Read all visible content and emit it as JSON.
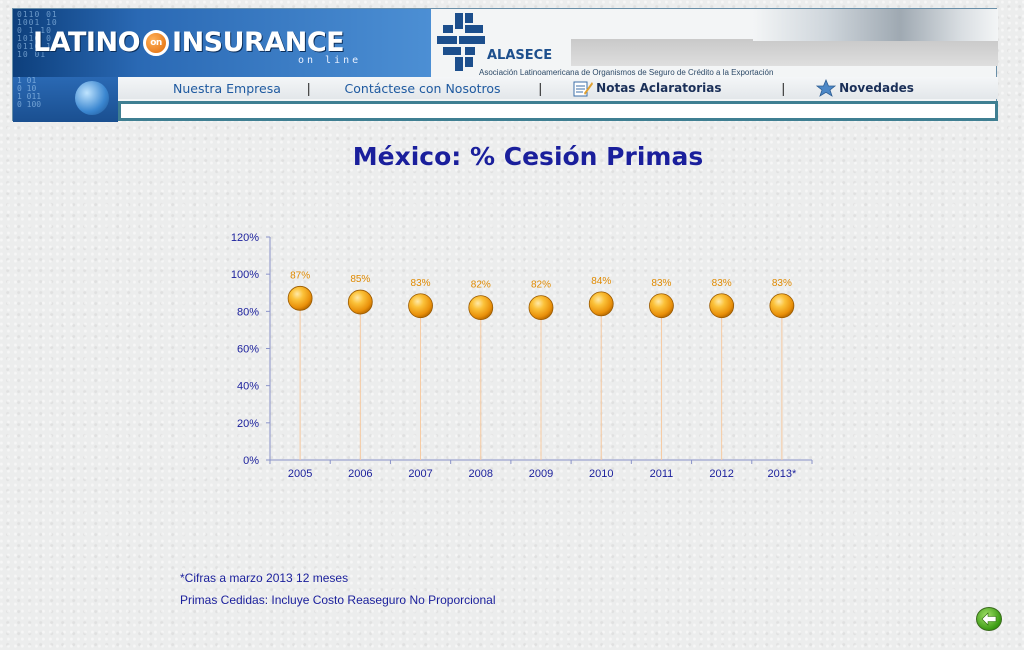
{
  "header": {
    "logo_left": "LATINO",
    "logo_on": "on",
    "logo_right": "INSURANCE",
    "logo_subtitle": "on line",
    "org_name": "ALASECE",
    "org_description": "Asociación Latinoamericana de Organismos de Seguro de Crédito a la Exportación"
  },
  "nav": {
    "items": [
      {
        "label": "Nuestra Empresa"
      },
      {
        "label": "Contáctese con Nosotros"
      },
      {
        "label": "Notas Aclaratorias"
      },
      {
        "label": "Novedades"
      }
    ],
    "separator": "|"
  },
  "title": "México: % Cesión Primas",
  "chart_data": {
    "type": "scatter",
    "categories": [
      "2005",
      "2006",
      "2007",
      "2008",
      "2009",
      "2010",
      "2011",
      "2012",
      "2013*"
    ],
    "values": [
      87,
      85,
      83,
      82,
      82,
      84,
      83,
      83,
      83
    ],
    "data_labels": [
      "87%",
      "85%",
      "83%",
      "82%",
      "82%",
      "84%",
      "83%",
      "83%",
      "83%"
    ],
    "y_ticks": [
      "0%",
      "20%",
      "40%",
      "60%",
      "80%",
      "100%",
      "120%"
    ],
    "ylim": [
      0,
      120
    ],
    "xlabel": "",
    "ylabel": "",
    "grid": false,
    "marker_color": "#f2a61a",
    "label_color": "#e08a00",
    "drop_line_color": "#f6c9a0"
  },
  "footnotes": {
    "note1": "*Cifras a marzo 2013 12 meses",
    "note2": "Primas Cedidas: Incluye Costo Reaseguro No Proporcional"
  },
  "colors": {
    "title": "#1a1f9c",
    "nav_text": "#1f5aa0",
    "back_button": "#3a9a12"
  },
  "icons": {
    "back": "back-arrow-icon",
    "notes": "notes-icon",
    "news": "star-icon"
  }
}
